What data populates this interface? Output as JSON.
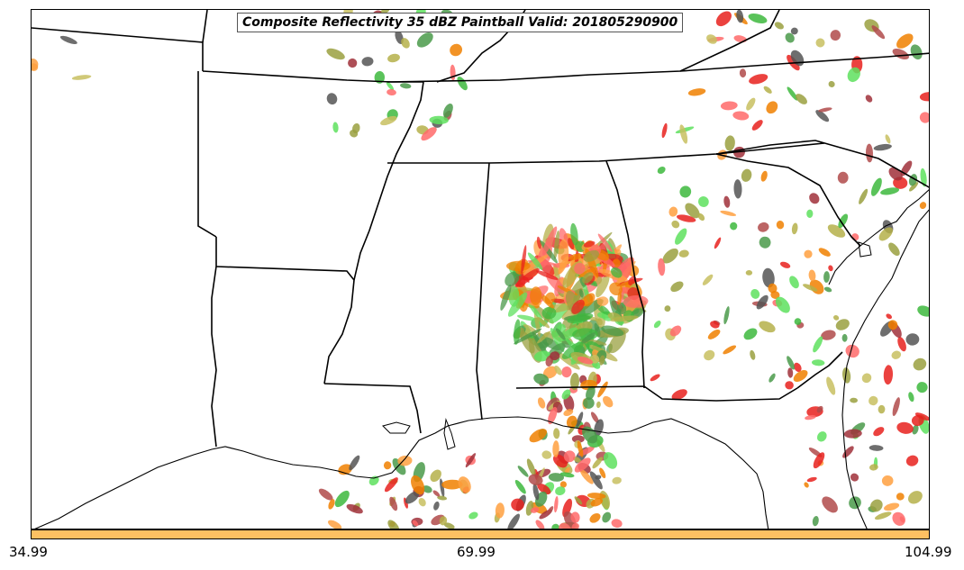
{
  "title": "Composite Reflectivity 35 dBZ Paintball Valid: 201805290900",
  "colorbar": {
    "color": "#fdc062",
    "ticks": [
      "34.99",
      "69.99",
      "104.99"
    ]
  },
  "colors": {
    "member_palette": [
      "#e8211d",
      "#ff6a6a",
      "#f08000",
      "#ffa040",
      "#3db83d",
      "#5ee05e",
      "#4a9a4a",
      "#9aa040",
      "#b5b04a",
      "#c8c060",
      "#a0303a",
      "#b04a4a",
      "#555555"
    ]
  }
}
